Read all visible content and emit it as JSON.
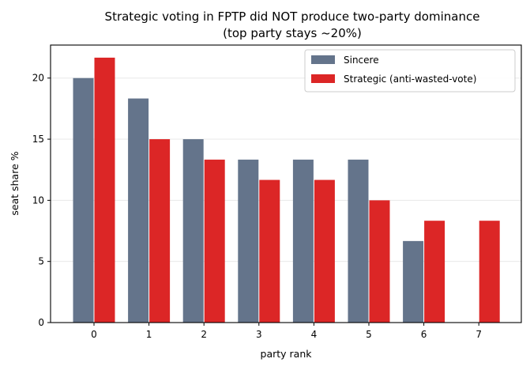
{
  "chart_data": {
    "type": "bar",
    "title": "Strategic voting in FPTP did NOT produce two-party dominance",
    "subtitle": "(top party stays ~20%)",
    "xlabel": "party rank",
    "ylabel": "seat share %",
    "categories": [
      "0",
      "1",
      "2",
      "3",
      "4",
      "5",
      "6",
      "7"
    ],
    "ylim": [
      0,
      22.7
    ],
    "yticks": [
      0,
      5,
      10,
      15,
      20
    ],
    "grid": "horizontal",
    "legend_position": "top-right",
    "series": [
      {
        "name": "Sincere",
        "color": "#64748b",
        "values": [
          20.0,
          18.33,
          15.0,
          13.33,
          13.33,
          13.33,
          6.67,
          0
        ]
      },
      {
        "name": "Strategic (anti-wasted-vote)",
        "color": "#dc2626",
        "values": [
          21.67,
          15.0,
          13.33,
          11.67,
          11.67,
          10.0,
          8.33,
          8.33
        ]
      }
    ]
  }
}
